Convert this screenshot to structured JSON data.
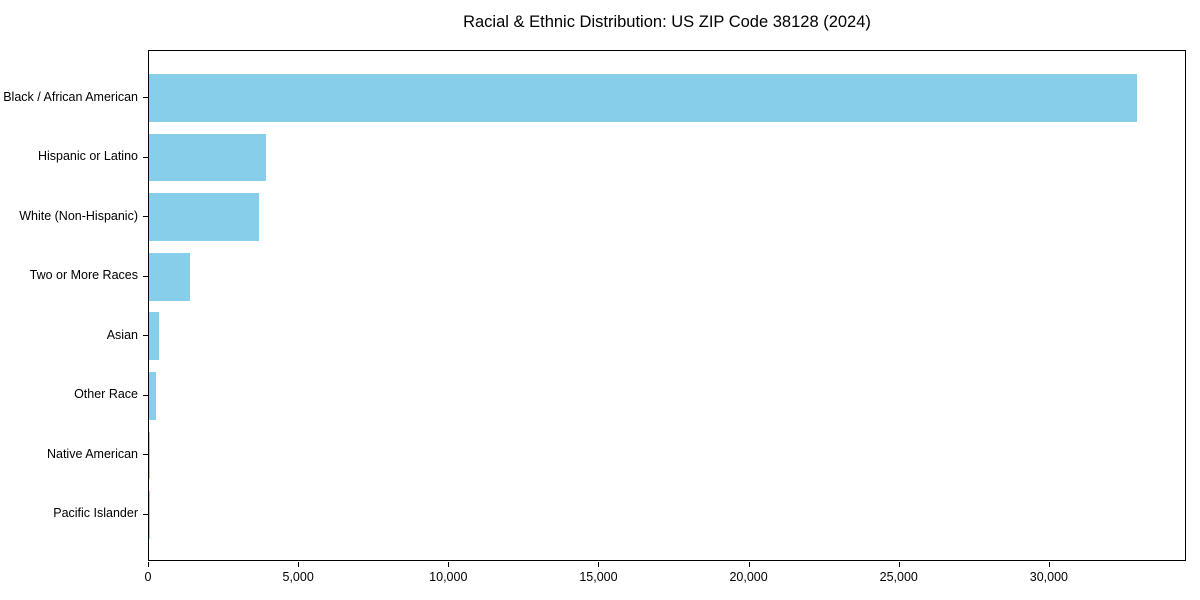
{
  "chart_data": {
    "type": "bar",
    "orientation": "horizontal",
    "title": "Racial & Ethnic Distribution: US ZIP Code 38128 (2024)",
    "xlabel": "",
    "ylabel": "",
    "categories": [
      "Black / African American",
      "Hispanic or Latino",
      "White (Non-Hispanic)",
      "Two or More Races",
      "Asian",
      "Other Race",
      "Native American",
      "Pacific Islander"
    ],
    "values": [
      32900,
      3900,
      3650,
      1380,
      320,
      220,
      25,
      8
    ],
    "xlim": [
      0,
      34565
    ],
    "x_ticks": [
      0,
      5000,
      10000,
      15000,
      20000,
      25000,
      30000
    ],
    "x_tick_labels": [
      "0",
      "5,000",
      "10,000",
      "15,000",
      "20,000",
      "25,000",
      "30,000"
    ],
    "bar_color": "#87CEEB",
    "axis_color": "#000000",
    "grid": false,
    "legend": false
  }
}
